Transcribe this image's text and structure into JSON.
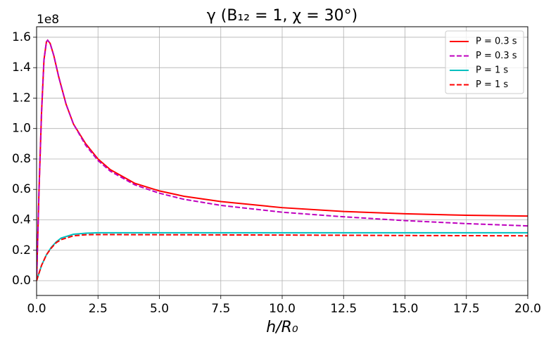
{
  "chart_data": {
    "type": "line",
    "title": "γ (B₁₂ = 1, χ = 30°)",
    "x_label": "h/R₀",
    "y_offset_label": "1e8",
    "xlim": [
      0,
      20
    ],
    "ylim": [
      -0.097,
      1.669
    ],
    "xticks": [
      {
        "value": 0,
        "label": "0.0"
      },
      2.5,
      {
        "value": 5,
        "label": "5.0"
      },
      7.5,
      {
        "value": 10,
        "label": "10.0"
      },
      12.5,
      {
        "value": 15,
        "label": "15.0"
      },
      17.5,
      {
        "value": 20,
        "label": "20.0"
      }
    ],
    "yticks": [
      {
        "value": 0,
        "label": "0.0"
      },
      0.2,
      0.4,
      0.6,
      0.8,
      {
        "value": 1,
        "label": "1.0"
      },
      1.2,
      1.4,
      1.6
    ],
    "grid": true,
    "legend": "upper right",
    "series": [
      {
        "name": "P = 0.3 s",
        "color": "#ff0000",
        "dashed": false,
        "x": [
          0,
          0.1,
          0.2,
          0.3,
          0.4,
          0.45,
          0.55,
          0.7,
          0.9,
          1.2,
          1.5,
          2.0,
          2.5,
          3.0,
          4.0,
          5.0,
          6.0,
          7.5,
          10,
          12.5,
          15,
          17.5,
          20
        ],
        "values": [
          0,
          0.6,
          1.1,
          1.45,
          1.57,
          1.58,
          1.56,
          1.48,
          1.34,
          1.16,
          1.03,
          0.9,
          0.8,
          0.73,
          0.64,
          0.59,
          0.555,
          0.52,
          0.48,
          0.455,
          0.44,
          0.43,
          0.425
        ]
      },
      {
        "name": "P = 0.3 s",
        "color": "#bf00bf",
        "dashed": true,
        "x": [
          0,
          0.1,
          0.2,
          0.3,
          0.4,
          0.45,
          0.55,
          0.7,
          0.9,
          1.2,
          1.5,
          2.0,
          2.5,
          3.0,
          4.0,
          5.0,
          6.0,
          7.5,
          10,
          12.5,
          15,
          17.5,
          20
        ],
        "values": [
          0,
          0.6,
          1.1,
          1.45,
          1.57,
          1.58,
          1.56,
          1.48,
          1.34,
          1.16,
          1.03,
          0.89,
          0.79,
          0.72,
          0.63,
          0.575,
          0.535,
          0.495,
          0.45,
          0.42,
          0.395,
          0.375,
          0.36
        ]
      },
      {
        "name": "P = 1 s",
        "color": "#00bfbf",
        "dashed": false,
        "x": [
          0,
          0.2,
          0.4,
          0.6,
          0.8,
          1.0,
          1.5,
          2.0,
          2.5,
          5,
          10,
          20
        ],
        "values": [
          0,
          0.1,
          0.17,
          0.22,
          0.255,
          0.28,
          0.305,
          0.312,
          0.315,
          0.315,
          0.315,
          0.315
        ]
      },
      {
        "name": "P = 1 s",
        "color": "#ff0000",
        "dashed": true,
        "x": [
          0,
          0.2,
          0.4,
          0.6,
          0.8,
          1.0,
          1.5,
          2.0,
          2.5,
          5,
          10,
          15,
          20
        ],
        "values": [
          0,
          0.1,
          0.17,
          0.215,
          0.25,
          0.27,
          0.295,
          0.302,
          0.303,
          0.302,
          0.3,
          0.297,
          0.295
        ]
      }
    ]
  }
}
